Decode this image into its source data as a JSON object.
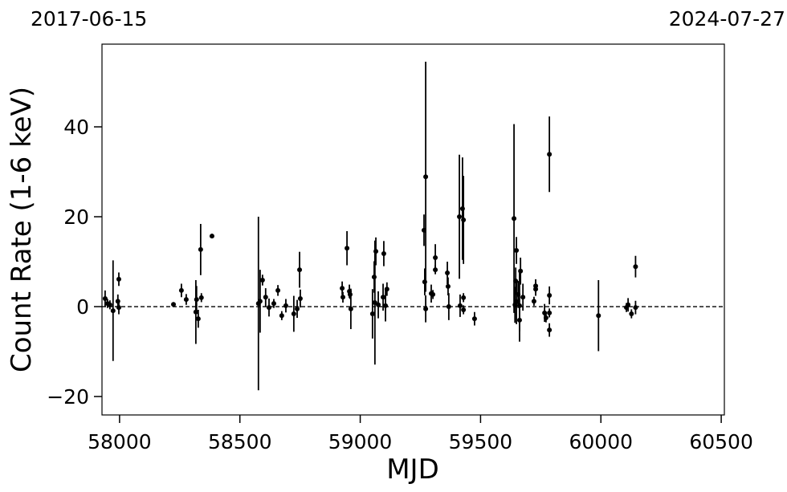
{
  "chart_data": {
    "type": "errorbar",
    "top_labels": [
      "2017-06-15",
      "2024-07-27"
    ],
    "x_label": "MJD",
    "y_label": "Count Rate (1-6 keV)",
    "xlim": [
      57927,
      60513
    ],
    "ylim": [
      -24.1,
      58.4
    ],
    "xticks": [
      58000,
      58500,
      59000,
      59500,
      60000,
      60500
    ],
    "yticks": [
      {
        "value": -20,
        "label": "−20"
      },
      0,
      20,
      40
    ],
    "hline": 0,
    "color": "#000000",
    "x": [
      57940,
      57950,
      57960,
      57973,
      57993,
      57997,
      57997,
      58224,
      58257,
      58277,
      58317,
      58320,
      58327,
      58337,
      58340,
      58384,
      58577,
      58584,
      58594,
      58607,
      58621,
      58641,
      58658,
      58674,
      58691,
      58724,
      58738,
      58748,
      58751,
      58925,
      58928,
      58945,
      58955,
      58961,
      58958,
      59051,
      59058,
      59061,
      59065,
      59075,
      59095,
      59098,
      59105,
      59111,
      59265,
      59268,
      59272,
      59272,
      59295,
      59302,
      59312,
      59312,
      59362,
      59365,
      59368,
      59412,
      59415,
      59425,
      59429,
      59429,
      59429,
      59475,
      59639,
      59643,
      59649,
      59646,
      59649,
      59656,
      59662,
      59666,
      59676,
      59662,
      59722,
      59729,
      59729,
      59766,
      59772,
      59786,
      59786,
      59786,
      59786,
      59990,
      60106,
      60113,
      60127,
      60144,
      60144
    ],
    "values": [
      1.8,
      0.7,
      0.4,
      -0.9,
      1.2,
      6.1,
      -0.2,
      0.5,
      3.6,
      1.6,
      -1.2,
      1.6,
      -2.7,
      12.7,
      2,
      15.7,
      0.7,
      1.2,
      5.9,
      2.1,
      -0.2,
      0.7,
      3.6,
      -2,
      0.2,
      -1.6,
      -0.5,
      8.2,
      1.8,
      4.1,
      2.1,
      13,
      3.4,
      -0.5,
      2.7,
      -1.6,
      6.6,
      0.9,
      12.3,
      0.4,
      2.1,
      11.8,
      0.2,
      3.9,
      17,
      5.5,
      28.9,
      -0.5,
      2.9,
      2.7,
      10.9,
      8.2,
      7.5,
      4.5,
      0,
      20,
      0.2,
      21.8,
      19.3,
      2,
      -0.7,
      -2.7,
      19.6,
      0.4,
      12.5,
      5.7,
      1.1,
      2.7,
      0.2,
      7.9,
      2.1,
      -3,
      1.2,
      3.9,
      4.6,
      -1.4,
      -2.5,
      33.9,
      2.5,
      -1.4,
      -5.2,
      -2,
      -0.2,
      0.4,
      -1.6,
      -0.2,
      8.9
    ],
    "errors": [
      1.8,
      1,
      1,
      11.2,
      1.5,
      1.5,
      1.5,
      0.5,
      1.5,
      1.2,
      7.1,
      3,
      2,
      5.7,
      1,
      0.5,
      19.3,
      7,
      1.2,
      2,
      2,
      1,
      1.2,
      1,
      1.5,
      4,
      2,
      4,
      2,
      1.5,
      1.2,
      3.8,
      1.5,
      4.5,
      1,
      5.5,
      3.5,
      13.8,
      3.1,
      3,
      3,
      2.8,
      3.5,
      1.5,
      3.5,
      3,
      25.6,
      3,
      2,
      1,
      3,
      1,
      2.5,
      2,
      3,
      13.8,
      2.5,
      11.4,
      9.8,
      1,
      1,
      1.5,
      21,
      4,
      3,
      3,
      5,
      3,
      8,
      3,
      3,
      2.5,
      1,
      1.5,
      1.5,
      2,
      1,
      8.4,
      2,
      1,
      1.5,
      7.9,
      1,
      1.5,
      1,
      1.5,
      2.4
    ]
  }
}
